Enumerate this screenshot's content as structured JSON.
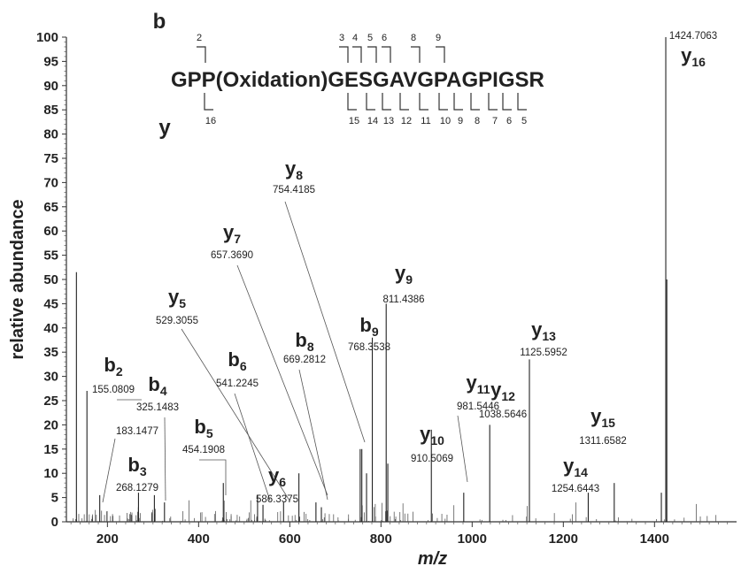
{
  "chart_data": {
    "type": "bar",
    "subtype": "mass-spectrum",
    "xlabel": "m/z",
    "ylabel": "relative abundance",
    "xlim": [
      110,
      1580
    ],
    "ylim": [
      0,
      100
    ],
    "xticks": [
      200,
      400,
      600,
      800,
      1000,
      1200,
      1400
    ],
    "yticks": [
      0,
      5,
      10,
      15,
      20,
      25,
      30,
      35,
      40,
      45,
      50,
      55,
      60,
      65,
      70,
      75,
      80,
      85,
      90,
      95,
      100
    ],
    "grid": false,
    "peaks": [
      {
        "mz": 132,
        "intensity": 51.5
      },
      {
        "mz": 155.08,
        "intensity": 27
      },
      {
        "mz": 183.15,
        "intensity": 5.5
      },
      {
        "mz": 268.13,
        "intensity": 6
      },
      {
        "mz": 303,
        "intensity": 5.5
      },
      {
        "mz": 325.15,
        "intensity": 4
      },
      {
        "mz": 454.19,
        "intensity": 8
      },
      {
        "mz": 529.31,
        "intensity": 5.5
      },
      {
        "mz": 541.22,
        "intensity": 3.5
      },
      {
        "mz": 586.34,
        "intensity": 4
      },
      {
        "mz": 620,
        "intensity": 10
      },
      {
        "mz": 657.37,
        "intensity": 4
      },
      {
        "mz": 669.28,
        "intensity": 3
      },
      {
        "mz": 754.42,
        "intensity": 15
      },
      {
        "mz": 758,
        "intensity": 15
      },
      {
        "mz": 768.35,
        "intensity": 10
      },
      {
        "mz": 781,
        "intensity": 38
      },
      {
        "mz": 811.44,
        "intensity": 45
      },
      {
        "mz": 815,
        "intensity": 12
      },
      {
        "mz": 910.51,
        "intensity": 19
      },
      {
        "mz": 981.54,
        "intensity": 6
      },
      {
        "mz": 1038.56,
        "intensity": 20
      },
      {
        "mz": 1125.6,
        "intensity": 33.5
      },
      {
        "mz": 1254.64,
        "intensity": 6
      },
      {
        "mz": 1311.66,
        "intensity": 8
      },
      {
        "mz": 1415,
        "intensity": 6
      },
      {
        "mz": 1424.71,
        "intensity": 100
      },
      {
        "mz": 1427,
        "intensity": 50
      }
    ],
    "noise_seed": 7,
    "annotations": [
      {
        "ion": "y",
        "sub": "16",
        "mass": "1424.7063"
      },
      {
        "ion": "y",
        "sub": "8",
        "mass": "754.4185"
      },
      {
        "ion": "y",
        "sub": "7",
        "mass": "657.3690"
      },
      {
        "ion": "y",
        "sub": "9",
        "mass": "811.4386"
      },
      {
        "ion": "b",
        "sub": "9",
        "mass": "768.3538"
      },
      {
        "ion": "b",
        "sub": "8",
        "mass": "669.2812"
      },
      {
        "ion": "y",
        "sub": "5",
        "mass": "529.3055"
      },
      {
        "ion": "b",
        "sub": "6",
        "mass": "541.2245"
      },
      {
        "ion": "b",
        "sub": "2",
        "mass": "155.0809"
      },
      {
        "ion": "b",
        "sub": "4",
        "mass": "325.1483"
      },
      {
        "ion": "",
        "sub": "",
        "mass": "183.1477"
      },
      {
        "ion": "b",
        "sub": "5",
        "mass": "454.1908"
      },
      {
        "ion": "b",
        "sub": "3",
        "mass": "268.1279"
      },
      {
        "ion": "y",
        "sub": "6",
        "mass": "586.3375"
      },
      {
        "ion": "y",
        "sub": "11",
        "mass": "981.5446"
      },
      {
        "ion": "y",
        "sub": "13",
        "mass": "1125.5952"
      },
      {
        "ion": "y",
        "sub": "12",
        "mass": "1038.5646"
      },
      {
        "ion": "y",
        "sub": "10",
        "mass": "910.5069"
      },
      {
        "ion": "y",
        "sub": "15",
        "mass": "1311.6582"
      },
      {
        "ion": "y",
        "sub": "14",
        "mass": "1254.6443"
      }
    ],
    "sequence": {
      "text": "GPP(Oxidation)GESGAVGPAGPIGSR",
      "b_label": "b",
      "y_label": "y",
      "b_ions": [
        "2",
        "3",
        "4",
        "5",
        "6",
        "8",
        "9"
      ],
      "y_ions": [
        "16",
        "15",
        "14",
        "13",
        "12",
        "11",
        "10",
        "9",
        "8",
        "7",
        "6",
        "5"
      ]
    }
  }
}
